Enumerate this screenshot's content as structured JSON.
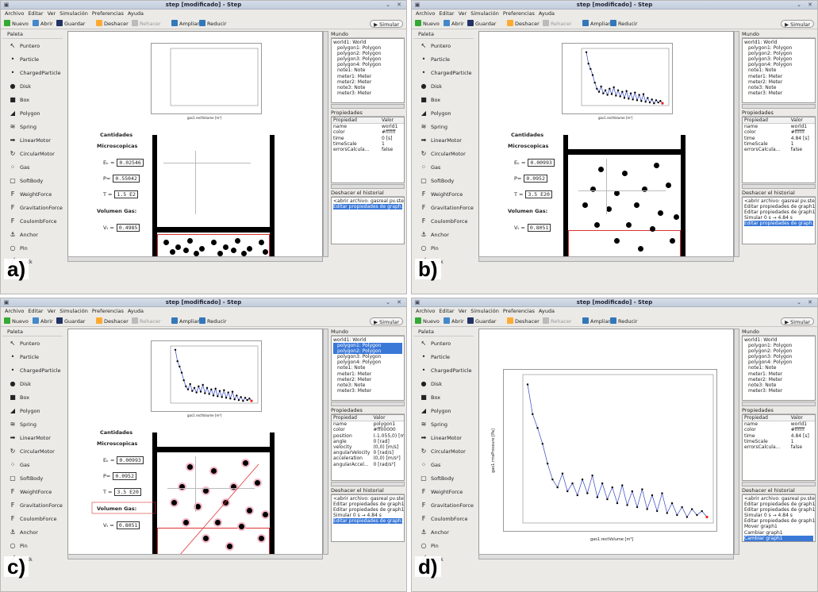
{
  "window": {
    "title": "step [modificado] - Step",
    "menu": [
      "Archivo",
      "Editar",
      "Ver",
      "Simulación",
      "Preferencias",
      "Ayuda"
    ]
  },
  "toolbar": {
    "new": "Nuevo",
    "open": "Abrir",
    "save": "Guardar",
    "undo": "Deshacer",
    "redo": "Rehacer",
    "zoom_in": "Ampliar",
    "zoom_out": "Reducir",
    "simulate": "Simular"
  },
  "palette": {
    "title": "Paleta",
    "items": [
      {
        "label": "Puntero",
        "icon": "pointer-icon",
        "glyph": "↖"
      },
      {
        "label": "Particle",
        "icon": "particle-icon",
        "glyph": "•"
      },
      {
        "label": "ChargedParticle",
        "icon": "charged-particle-icon",
        "glyph": "•"
      },
      {
        "label": "Disk",
        "icon": "disk-icon",
        "glyph": "●"
      },
      {
        "label": "Box",
        "icon": "box-icon",
        "glyph": "■"
      },
      {
        "label": "Polygon",
        "icon": "polygon-icon",
        "glyph": "◢"
      },
      {
        "label": "Spring",
        "icon": "spring-icon",
        "glyph": "≋"
      },
      {
        "label": "LinearMotor",
        "icon": "linear-motor-icon",
        "glyph": "➡"
      },
      {
        "label": "CircularMotor",
        "icon": "circular-motor-icon",
        "glyph": "↻"
      },
      {
        "label": "Gas",
        "icon": "gas-icon",
        "glyph": "⁘"
      },
      {
        "label": "SoftBody",
        "icon": "softbody-icon",
        "glyph": "▢"
      },
      {
        "label": "WeightForce",
        "icon": "weight-force-icon",
        "glyph": "F"
      },
      {
        "label": "GravitationForce",
        "icon": "gravitation-force-icon",
        "glyph": "F"
      },
      {
        "label": "CoulombForce",
        "icon": "coulomb-force-icon",
        "glyph": "F"
      },
      {
        "label": "Anchor",
        "icon": "anchor-icon",
        "glyph": "⚓"
      },
      {
        "label": "Pin",
        "icon": "pin-icon",
        "glyph": "○"
      },
      {
        "label": "Stick",
        "icon": "stick-icon",
        "glyph": "╱"
      }
    ]
  },
  "panels": {
    "world_title": "Mundo",
    "props_title": "Propiedades",
    "history_title": "Deshacer el historial",
    "prop_col": "Propiedad",
    "val_col": "Valor"
  },
  "world_items": [
    "world1: World",
    "polygon1: Polygon",
    "polygon2: Polygon",
    "polygon3: Polygon",
    "polygon4: Polygon",
    "note1: Note",
    "meter1: Meter",
    "meter2: Meter",
    "note3: Note",
    "meter3: Meter"
  ],
  "canvas_text": {
    "cantidades": "Cantidades",
    "microscopicas": "Microscopicas",
    "volumen": "Volumen Gas:",
    "ek": "Eₖ =",
    "p": "P=",
    "t": "T =",
    "v": "Vₜ =",
    "ylabel": "gas1.rmsPressure [Pa]",
    "xlabel": "gas1.rectVolume [m³]"
  },
  "panels_data": [
    {
      "id": "a",
      "label": "a)",
      "meters": {
        "ek": "0.02546",
        "p": "0.55042",
        "t": "1.5 E2",
        "v": "0.4985"
      },
      "props": [
        [
          "name",
          "world1"
        ],
        [
          "color",
          "#ffffff"
        ],
        [
          "time",
          "0 [s]"
        ],
        [
          "timeScale",
          "1"
        ],
        [
          "errorsCalcula...",
          "false"
        ]
      ],
      "history": [
        "<abrir archivo: gasreal pv.ste>",
        "Editar propiedades de graph1"
      ],
      "history_sel": 1,
      "world_sel": []
    },
    {
      "id": "b",
      "label": "b)",
      "meters": {
        "ek": "0.00993",
        "p": "0.0952",
        "t": "3.5 E20",
        "v": "0.8051"
      },
      "props": [
        [
          "name",
          "world1"
        ],
        [
          "color",
          "#ffffff"
        ],
        [
          "time",
          "4.84 [s]"
        ],
        [
          "timeScale",
          "1"
        ],
        [
          "errorsCalcula...",
          "false"
        ]
      ],
      "history": [
        "<abrir archivo: gasreal pv.ste>",
        "Editar propiedades de graph1",
        "Editar propiedades de graph1",
        "Simular 0 s → 4.84 s",
        "Editar propiedades de graph1"
      ],
      "history_sel": 4,
      "world_sel": []
    },
    {
      "id": "c",
      "label": "c)",
      "meters": {
        "ek": "0.00993",
        "p": "0.0952",
        "t": "3.5 E20",
        "v": "0.8051"
      },
      "props": [
        [
          "name",
          "polygon1"
        ],
        [
          "color",
          "#ff00000"
        ],
        [
          "position",
          "(-1.055,0) [m]"
        ],
        [
          "angle",
          "0 [rad]"
        ],
        [
          "velocity",
          "(0,0) [m/s]"
        ],
        [
          "angularVelocity",
          "0 [rad/s]"
        ],
        [
          "acceleration",
          "(0,0) [m/s²]"
        ],
        [
          "angularAccel...",
          "0 [rad/s²]"
        ]
      ],
      "history": [
        "<abrir archivo: gasreal pv.ste>",
        "Editar propiedades de graph1",
        "Editar propiedades de graph1",
        "Simular 0 s → 4.84 s",
        "Editar propiedades de graph1"
      ],
      "history_sel": 4,
      "world_sel": [
        1,
        2
      ]
    },
    {
      "id": "d",
      "label": "d)",
      "meters": {},
      "props": [
        [
          "name",
          "world1"
        ],
        [
          "color",
          "#ffffff"
        ],
        [
          "time",
          "4.84 [s]"
        ],
        [
          "timeScale",
          "1"
        ],
        [
          "errorsCalcula...",
          "false"
        ]
      ],
      "history": [
        "<abrir archivo: gasreal pv.ste>",
        "Editar propiedades de graph1",
        "Editar propiedades de graph1",
        "Simular 0 s → 4.84 s",
        "Editar propiedades de graph1",
        "Mover graph1",
        "Cambiar graph1",
        "Cambiar graph1"
      ],
      "history_sel": 7,
      "world_sel": []
    }
  ],
  "chart_data": {
    "type": "line",
    "title": "",
    "xlabel": "gas1.rectVolume [m³]",
    "ylabel": "gas1.rmsPressure [Pa]",
    "series": [
      {
        "values": [
          0.7,
          0.55,
          0.48,
          0.4,
          0.3,
          0.22,
          0.18,
          0.25,
          0.16,
          0.2,
          0.14,
          0.22,
          0.15,
          0.24,
          0.13,
          0.2,
          0.12,
          0.18,
          0.1,
          0.19,
          0.09,
          0.16,
          0.08,
          0.17,
          0.07,
          0.14,
          0.06,
          0.15,
          0.05,
          0.1,
          0.04,
          0.08,
          0.03,
          0.07,
          0.04,
          0.06,
          0.03
        ]
      }
    ],
    "xticks": [
      "0.8"
    ],
    "yticks": [
      "0.6",
      "0.4",
      "0.2",
      "0"
    ],
    "color": "#3344bb",
    "marker_color": "#000000",
    "end_color": "#ee2222"
  }
}
